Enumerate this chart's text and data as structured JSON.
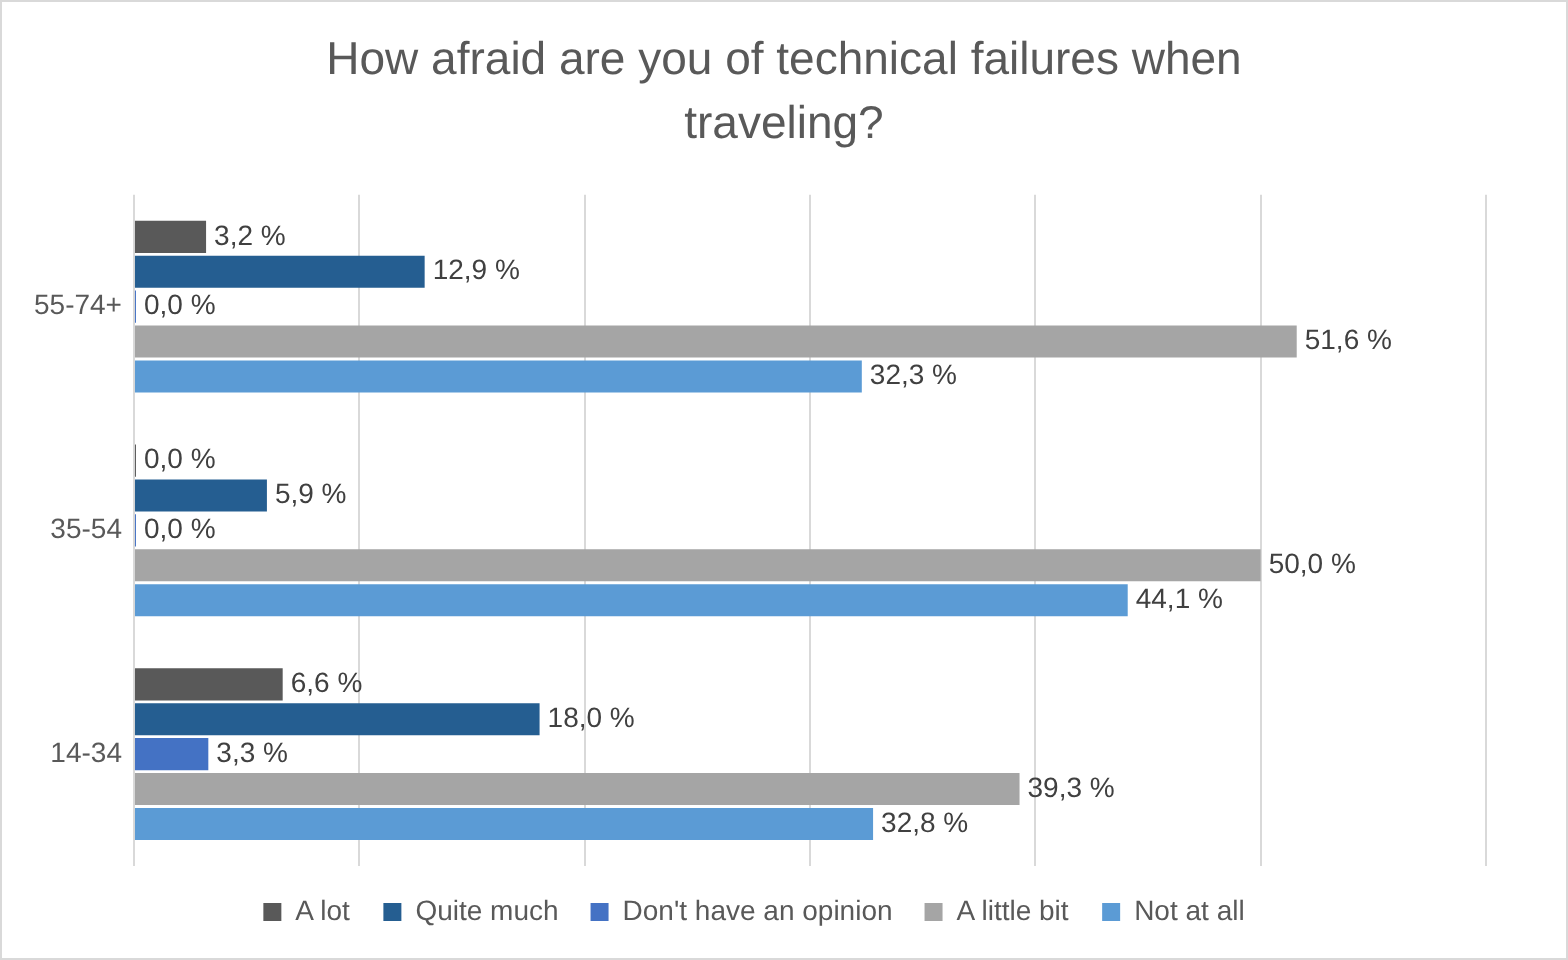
{
  "chart_data": {
    "type": "bar",
    "orientation": "horizontal",
    "title": "How afraid are you of technical failures when traveling?",
    "categories": [
      "55-74+",
      "35-54",
      "14-34"
    ],
    "series": [
      {
        "name": "A lot",
        "color": "#595959",
        "values": [
          3.2,
          0.0,
          6.6
        ],
        "value_labels": [
          "3,2 %",
          "0,0 %",
          "6,6 %"
        ]
      },
      {
        "name": "Quite much",
        "color": "#255e91",
        "values": [
          12.9,
          5.9,
          18.0
        ],
        "value_labels": [
          "12,9 %",
          "5,9 %",
          "18,0 %"
        ]
      },
      {
        "name": "Don't have an opinion",
        "color": "#4472c4",
        "values": [
          0.0,
          0.0,
          3.3
        ],
        "value_labels": [
          "0,0 %",
          "0,0 %",
          "3,3 %"
        ]
      },
      {
        "name": "A little bit",
        "color": "#a5a5a5",
        "values": [
          51.6,
          50.0,
          39.3
        ],
        "value_labels": [
          "51,6 %",
          "50,0 %",
          "39,3 %"
        ]
      },
      {
        "name": "Not at all",
        "color": "#5b9bd5",
        "values": [
          32.3,
          44.1,
          32.8
        ],
        "value_labels": [
          "32,3 %",
          "44,1 %",
          "32,8 %"
        ]
      }
    ],
    "xlim": [
      0,
      60
    ],
    "xticks": [
      {
        "value": 0,
        "label": null
      },
      {
        "value": 10,
        "label": null
      },
      {
        "value": 20,
        "label": null
      },
      {
        "value": 30,
        "label": null
      },
      {
        "value": 40,
        "label": null
      },
      {
        "value": 50,
        "label": null
      },
      {
        "value": 60,
        "label": null
      }
    ],
    "tick_labels": "y",
    "grid": "x",
    "legend": "bottom"
  }
}
